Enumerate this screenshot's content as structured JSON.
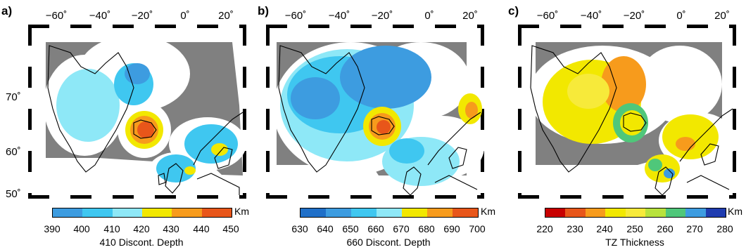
{
  "lon_ticks": [
    "−60˚",
    "−40˚",
    "−20˚",
    "0˚",
    "20˚"
  ],
  "lat_ticks": [
    "70˚",
    "60˚",
    "50˚"
  ],
  "colors": {
    "land_mask": "#808080",
    "frame": "#000000",
    "background": "#ffffff"
  },
  "panels": [
    {
      "label": "a)",
      "title": "410 Discont. Depth",
      "unit": "Km",
      "ticks": [
        "390",
        "400",
        "410",
        "420",
        "430",
        "440",
        "450"
      ],
      "colors": [
        "#3d9ce0",
        "#3fc7f0",
        "#8ee8f7",
        "#f2e800",
        "#f79b1c",
        "#e8561a"
      ]
    },
    {
      "label": "b)",
      "title": "660 Discont. Depth",
      "unit": "Km",
      "ticks": [
        "630",
        "640",
        "650",
        "660",
        "670",
        "680",
        "690",
        "700"
      ],
      "colors": [
        "#1f6fc8",
        "#3d9ce0",
        "#3fc7f0",
        "#8ee8f7",
        "#f2e800",
        "#f79b1c",
        "#e8561a"
      ]
    },
    {
      "label": "c)",
      "title": "TZ Thickness",
      "unit": "Km",
      "ticks": [
        "220",
        "230",
        "240",
        "250",
        "260",
        "270",
        "280"
      ],
      "colors": [
        "#c80000",
        "#e8561a",
        "#f79b1c",
        "#f2e800",
        "#f7ea3a",
        "#b8e23c",
        "#4fc77a",
        "#3d9ce0",
        "#1f3cb0"
      ]
    }
  ]
}
